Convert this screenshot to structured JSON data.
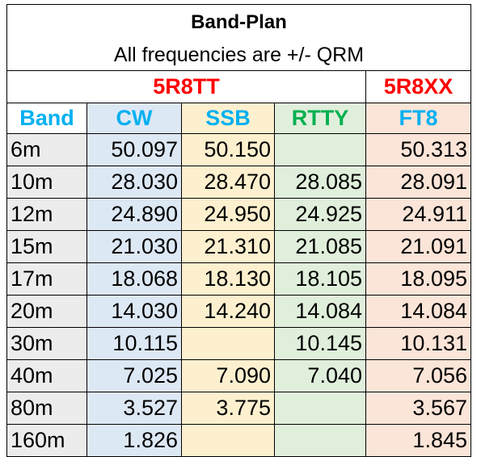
{
  "title": "Band-Plan",
  "subtitle": "All frequencies are +/- QRM",
  "stations": [
    {
      "label": "5R8TT",
      "color": "#ff0000"
    },
    {
      "label": "5R8XX",
      "color": "#ff0000"
    }
  ],
  "columns": [
    {
      "label": "Band",
      "bg": "#ffffff",
      "header_color": "#00b0f0"
    },
    {
      "label": "CW",
      "bg": "#dde8f5",
      "header_color": "#00b0f0"
    },
    {
      "label": "SSB",
      "bg": "#fdf0cf",
      "header_color": "#00b0f0"
    },
    {
      "label": "RTTY",
      "bg": "#e0efdb",
      "header_color": "#00b050"
    },
    {
      "label": "FT8",
      "bg": "#fbe4d8",
      "header_color": "#00b0f0"
    }
  ],
  "band_cell_bg": "#ececec",
  "rows": [
    {
      "band": "6m",
      "cw": "50.097",
      "ssb": "50.150",
      "rtty": "",
      "ft8": "50.313"
    },
    {
      "band": "10m",
      "cw": "28.030",
      "ssb": "28.470",
      "rtty": "28.085",
      "ft8": "28.091"
    },
    {
      "band": "12m",
      "cw": "24.890",
      "ssb": "24.950",
      "rtty": "24.925",
      "ft8": "24.911"
    },
    {
      "band": "15m",
      "cw": "21.030",
      "ssb": "21.310",
      "rtty": "21.085",
      "ft8": "21.091"
    },
    {
      "band": "17m",
      "cw": "18.068",
      "ssb": "18.130",
      "rtty": "18.105",
      "ft8": "18.095"
    },
    {
      "band": "20m",
      "cw": "14.030",
      "ssb": "14.240",
      "rtty": "14.084",
      "ft8": "14.084"
    },
    {
      "band": "30m",
      "cw": "10.115",
      "ssb": "",
      "rtty": "10.145",
      "ft8": "10.131"
    },
    {
      "band": "40m",
      "cw": "7.025",
      "ssb": "7.090",
      "rtty": "7.040",
      "ft8": "7.056"
    },
    {
      "band": "80m",
      "cw": "3.527",
      "ssb": "3.775",
      "rtty": "",
      "ft8": "3.567"
    },
    {
      "band": "160m",
      "cw": "1.826",
      "ssb": "",
      "rtty": "",
      "ft8": "1.845"
    }
  ]
}
